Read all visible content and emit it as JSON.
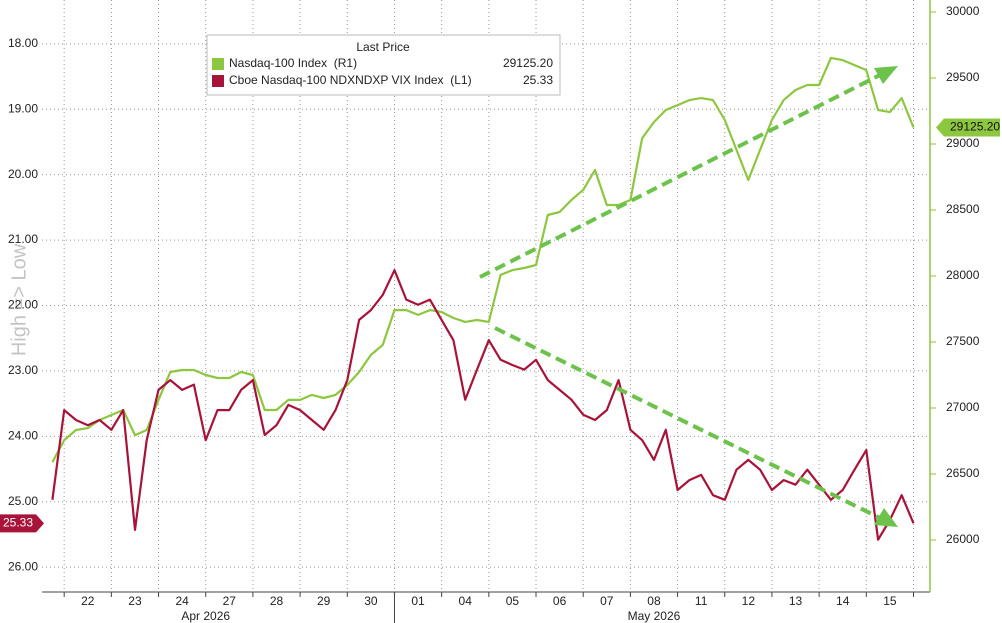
{
  "chart_data": {
    "type": "line",
    "title": "Last Price",
    "ylabel": "High => Low",
    "x": [
      -0.25,
      0,
      0.25,
      0.5,
      0.75,
      1,
      1.25,
      1.5,
      1.75,
      2,
      2.25,
      2.5,
      2.75,
      3,
      3.25,
      3.5,
      3.75,
      4,
      4.25,
      4.5,
      4.75,
      5,
      5.25,
      5.5,
      5.75,
      6,
      6.25,
      6.5,
      6.75,
      7,
      7.25,
      7.5,
      7.75,
      8,
      8.25,
      8.5,
      8.75,
      9,
      9.25,
      9.5,
      9.75,
      10,
      10.25,
      10.5,
      10.75,
      11,
      11.25,
      11.5,
      11.75,
      12,
      12.25,
      12.5,
      12.75,
      13,
      13.25,
      13.5,
      13.75,
      14,
      14.25,
      14.5,
      14.75,
      15,
      15.25,
      15.5,
      15.75,
      16,
      16.25,
      16.5,
      16.75,
      17,
      17.25,
      17.5,
      17.75,
      18
    ],
    "xlim": [
      -0.47,
      18.35
    ],
    "xticks": [
      {
        "value": 0.5,
        "label": "22"
      },
      {
        "value": 1.5,
        "label": "23"
      },
      {
        "value": 2.5,
        "label": "24"
      },
      {
        "value": 3.5,
        "label": "27"
      },
      {
        "value": 4.5,
        "label": "28"
      },
      {
        "value": 5.5,
        "label": "29"
      },
      {
        "value": 6.5,
        "label": "30"
      },
      {
        "value": 7.5,
        "label": "01"
      },
      {
        "value": 8.5,
        "label": "04"
      },
      {
        "value": 9.5,
        "label": "05"
      },
      {
        "value": 10.5,
        "label": "06"
      },
      {
        "value": 11.5,
        "label": "07"
      },
      {
        "value": 12.5,
        "label": "08"
      },
      {
        "value": 13.5,
        "label": "11"
      },
      {
        "value": 14.5,
        "label": "12"
      },
      {
        "value": 15.5,
        "label": "13"
      },
      {
        "value": 16.5,
        "label": "14"
      },
      {
        "value": 17.5,
        "label": "15"
      }
    ],
    "months": [
      {
        "value": 3.0,
        "label": "Apr 2026"
      },
      {
        "value": 12.5,
        "label": "May 2026"
      }
    ],
    "month_break": 7,
    "ylim": [
      26.38,
      17.33
    ],
    "yticks": [
      {
        "value": 18,
        "label": "18.00"
      },
      {
        "value": 19,
        "label": "19.00"
      },
      {
        "value": 20,
        "label": "20.00"
      },
      {
        "value": 21,
        "label": "21.00"
      },
      {
        "value": 22,
        "label": "22.00"
      },
      {
        "value": 23,
        "label": "23.00"
      },
      {
        "value": 24,
        "label": "24.00"
      },
      {
        "value": 25,
        "label": "25.00"
      },
      {
        "value": 26,
        "label": "26.00"
      }
    ],
    "y2lim": [
      25606,
      30091
    ],
    "y2ticks": [
      26000,
      26500,
      27000,
      27500,
      28000,
      28500,
      29000,
      29500,
      30000
    ],
    "grid": true,
    "series": [
      {
        "name": "Nasdaq-100 Index  (R1)",
        "color": "#8dc63f",
        "axis": "y2",
        "last_price": "29125.20",
        "values": [
          26590,
          26757,
          26833,
          26848,
          26909,
          26947,
          26985,
          26795,
          26833,
          27061,
          27273,
          27288,
          27288,
          27250,
          27227,
          27227,
          27273,
          27250,
          26985,
          26985,
          27061,
          27061,
          27099,
          27076,
          27099,
          27174,
          27273,
          27402,
          27477,
          27742,
          27742,
          27705,
          27742,
          27727,
          27682,
          27652,
          27667,
          27652,
          28008,
          28045,
          28061,
          28083,
          28462,
          28485,
          28576,
          28652,
          28803,
          28538,
          28538,
          28576,
          29045,
          29167,
          29258,
          29295,
          29333,
          29348,
          29333,
          29182,
          28955,
          28727,
          28955,
          29182,
          29333,
          29409,
          29447,
          29447,
          29652,
          29636,
          29598,
          29561,
          29258,
          29242,
          29348,
          29125.2
        ]
      },
      {
        "name": "Cboe Nasdaq-100 NDXNDXP VIX Index  (L1)",
        "color": "#a8133a",
        "axis": "y",
        "last_price": "25.33",
        "values": [
          24.97,
          23.6,
          23.75,
          23.83,
          23.75,
          23.9,
          23.6,
          25.43,
          24.06,
          23.29,
          23.14,
          23.29,
          23.21,
          24.06,
          23.6,
          23.6,
          23.29,
          23.14,
          23.98,
          23.83,
          23.52,
          23.6,
          23.75,
          23.9,
          23.6,
          23.14,
          22.22,
          22.07,
          21.84,
          21.46,
          21.91,
          21.99,
          21.91,
          22.22,
          22.53,
          23.44,
          22.98,
          22.53,
          22.83,
          22.91,
          22.98,
          22.83,
          23.14,
          23.29,
          23.44,
          23.67,
          23.75,
          23.6,
          23.14,
          23.9,
          24.06,
          24.36,
          23.9,
          24.82,
          24.67,
          24.59,
          24.9,
          24.97,
          24.51,
          24.36,
          24.51,
          24.82,
          24.67,
          24.74,
          24.51,
          24.74,
          24.97,
          24.82,
          24.51,
          24.21,
          25.58,
          25.28,
          24.9,
          25.33
        ]
      }
    ]
  }
}
